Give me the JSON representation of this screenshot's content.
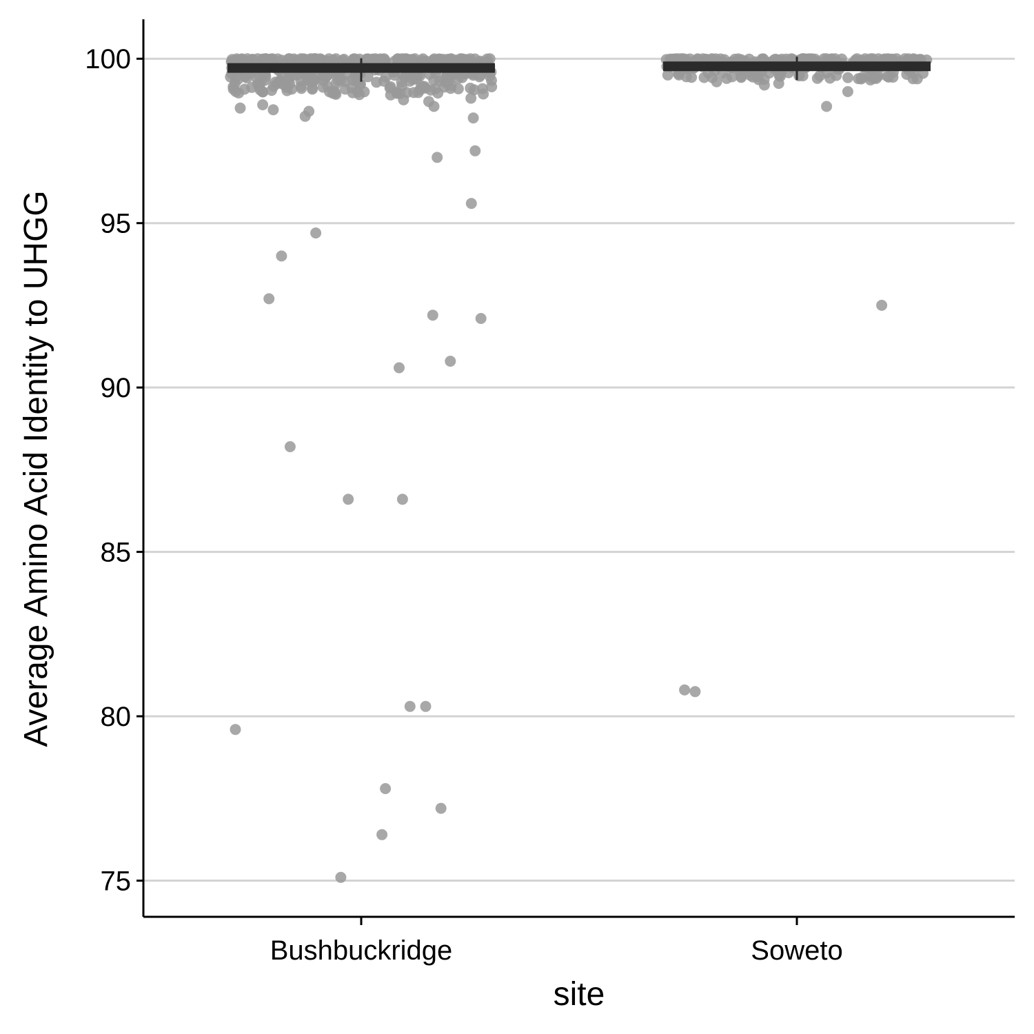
{
  "chart_data": {
    "type": "scatter",
    "xlabel": "site",
    "ylabel": "Average Amino Acid Identity to UHGG",
    "categories": [
      "Bushbuckridge",
      "Soweto"
    ],
    "ylim": [
      73.9,
      101.2
    ],
    "yticks": [
      75,
      80,
      85,
      90,
      95,
      100
    ],
    "grid": "horizontal",
    "legend": "none",
    "point_color": "#999999",
    "summary_color": "#2b2b2b",
    "summary": [
      {
        "site": "Bushbuckridge",
        "median": 99.72
      },
      {
        "site": "Soweto",
        "median": 99.77
      }
    ],
    "series": [
      {
        "site": "Bushbuckridge",
        "points": [
          {
            "x": "Bushbuckridge",
            "y": 97.2
          },
          {
            "x": "Bushbuckridge",
            "y": 97.0
          },
          {
            "x": "Bushbuckridge",
            "y": 95.6
          },
          {
            "x": "Bushbuckridge",
            "y": 94.7
          },
          {
            "x": "Bushbuckridge",
            "y": 94.0
          },
          {
            "x": "Bushbuckridge",
            "y": 92.7
          },
          {
            "x": "Bushbuckridge",
            "y": 92.2
          },
          {
            "x": "Bushbuckridge",
            "y": 92.1
          },
          {
            "x": "Bushbuckridge",
            "y": 90.8
          },
          {
            "x": "Bushbuckridge",
            "y": 90.6
          },
          {
            "x": "Bushbuckridge",
            "y": 88.2
          },
          {
            "x": "Bushbuckridge",
            "y": 86.6
          },
          {
            "x": "Bushbuckridge",
            "y": 86.6
          },
          {
            "x": "Bushbuckridge",
            "y": 80.3
          },
          {
            "x": "Bushbuckridge",
            "y": 80.3
          },
          {
            "x": "Bushbuckridge",
            "y": 79.6
          },
          {
            "x": "Bushbuckridge",
            "y": 77.8
          },
          {
            "x": "Bushbuckridge",
            "y": 77.2
          },
          {
            "x": "Bushbuckridge",
            "y": 76.4
          },
          {
            "x": "Bushbuckridge",
            "y": 75.1
          },
          {
            "x": "Bushbuckridge",
            "y": 98.2
          },
          {
            "x": "Bushbuckridge",
            "y": 98.25
          },
          {
            "x": "Bushbuckridge",
            "y": 98.4
          },
          {
            "x": "Bushbuckridge",
            "y": 98.45
          },
          {
            "x": "Bushbuckridge",
            "y": 98.5
          },
          {
            "x": "Bushbuckridge",
            "y": 98.55
          },
          {
            "x": "Bushbuckridge",
            "y": 98.6
          },
          {
            "x": "Bushbuckridge",
            "y": 98.7
          },
          {
            "x": "Bushbuckridge",
            "y": 98.75
          },
          {
            "x": "Bushbuckridge",
            "y": 98.8
          },
          {
            "x": "Bushbuckridge",
            "y": 98.9
          },
          {
            "x": "Bushbuckridge",
            "y": 98.95
          },
          {
            "x": "Bushbuckridge",
            "y": 99.0
          },
          {
            "x": "Bushbuckridge",
            "y": 99.05
          }
        ],
        "dense_band": {
          "min": 98.9,
          "max": 100.0,
          "count": 420
        }
      },
      {
        "site": "Soweto",
        "points": [
          {
            "x": "Soweto",
            "y": 92.5
          },
          {
            "x": "Soweto",
            "y": 80.8
          },
          {
            "x": "Soweto",
            "y": 80.75
          },
          {
            "x": "Soweto",
            "y": 98.55
          },
          {
            "x": "Soweto",
            "y": 99.0
          },
          {
            "x": "Soweto",
            "y": 99.2
          },
          {
            "x": "Soweto",
            "y": 99.25
          },
          {
            "x": "Soweto",
            "y": 99.3
          }
        ],
        "dense_band": {
          "min": 99.35,
          "max": 100.0,
          "count": 240
        }
      }
    ]
  }
}
